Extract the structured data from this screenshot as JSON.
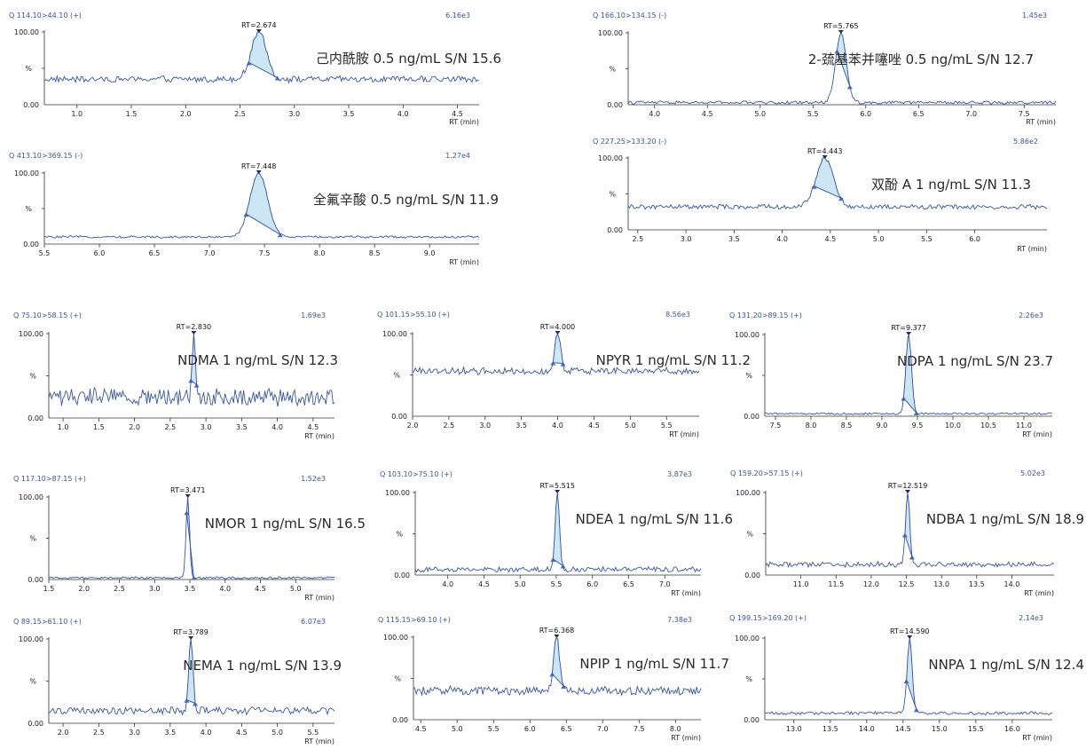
{
  "chart_data": [
    {
      "id": "caprolactam",
      "type": "line",
      "header_left": "Q 114.10>44.10 (+)",
      "header_right": "6.16e3",
      "y_top_label": "100.00",
      "y_mid_label": "%",
      "y_bottom_label": "0.00",
      "xlabel": "RT (min)",
      "xlim": [
        0.7,
        4.7
      ],
      "xticks": [
        1.0,
        1.5,
        2.0,
        2.5,
        3.0,
        3.5,
        4.0,
        4.5
      ],
      "tick_labels": [
        "1.0",
        "1.5",
        "2.0",
        "2.5",
        "3.0",
        "3.5",
        "4.0",
        "4.5"
      ],
      "rt": 2.674,
      "rt_label": "RT=2.674",
      "peak_start": 2.57,
      "peak_end": 2.85,
      "peak_width": 0.07,
      "baseline_level": 35,
      "noise_level": 4,
      "annotation": "己内酰胺  0.5 ng/mL S/N 15.6",
      "show_xlabel": true
    },
    {
      "id": "mercaptobenzothiazole",
      "type": "line",
      "header_left": "Q 166.10>134.15 (-)",
      "header_right": "1.45e3",
      "y_top_label": "100.00",
      "y_mid_label": "%",
      "y_bottom_label": "0.00",
      "xlabel": "RT (min)",
      "xlim": [
        3.75,
        7.8
      ],
      "xticks": [
        4.0,
        4.5,
        5.0,
        5.5,
        6.0,
        6.5,
        7.0,
        7.5
      ],
      "tick_labels": [
        "4.0",
        "4.5",
        "5.0",
        "5.5",
        "6.0",
        "6.5",
        "7.0",
        "7.5"
      ],
      "rt": 5.765,
      "rt_label": "RT=5.765",
      "peak_start": 5.72,
      "peak_end": 5.86,
      "peak_width": 0.05,
      "baseline_level": 3,
      "noise_level": 2,
      "annotation": "2-巯基苯并噻唑  0.5 ng/mL S/N 12.7",
      "show_xlabel": true
    },
    {
      "id": "pfoa",
      "type": "line",
      "header_left": "Q 413.10>369.15 (-)",
      "header_right": "1.27e4",
      "y_top_label": "100.00",
      "y_mid_label": "%",
      "y_bottom_label": "0.00",
      "xlabel": "RT (min)",
      "xlim": [
        5.5,
        9.45
      ],
      "xticks": [
        5.5,
        6.0,
        6.5,
        7.0,
        7.5,
        8.0,
        8.5,
        9.0
      ],
      "tick_labels": [
        "5.5",
        "6.0",
        "6.5",
        "7.0",
        "7.5",
        "8.0",
        "8.5",
        "9.0"
      ],
      "rt": 7.448,
      "rt_label": "RT=7.448",
      "peak_start": 7.33,
      "peak_end": 7.65,
      "peak_width": 0.08,
      "baseline_level": 10,
      "noise_level": 1.5,
      "annotation": "全氟辛酸  0.5 ng/mL S/N 11.9",
      "show_xlabel": true
    },
    {
      "id": "bpa",
      "type": "line",
      "header_left": "Q 227.25>133.20 (-)",
      "header_right": "5.86e2",
      "y_top_label": "100.00",
      "y_mid_label": "%",
      "y_bottom_label": "0.00",
      "xlabel": "RT (min)",
      "xlim": [
        2.4,
        6.75
      ],
      "xticks": [
        2.5,
        3.0,
        3.5,
        4.0,
        4.5,
        5.0,
        5.5,
        6.0
      ],
      "tick_labels": [
        "2.5",
        "3.0",
        "3.5",
        "4.0",
        "4.5",
        "5.0",
        "5.5",
        "6.0"
      ],
      "rt": 4.443,
      "rt_label": "RT=4.443",
      "peak_start": 4.33,
      "peak_end": 4.62,
      "peak_width": 0.09,
      "baseline_level": 32,
      "noise_level": 3,
      "annotation": "双酚 A 1 ng/mL S/N 11.3",
      "show_xlabel": true
    },
    {
      "id": "ndma",
      "type": "line",
      "header_left": "Q 75.10>58.15 (+)",
      "header_right": "1.69e3",
      "y_top_label": "100.00",
      "y_mid_label": "%",
      "y_bottom_label": "0.00",
      "xlabel": "RT (min)",
      "xlim": [
        0.8,
        4.8
      ],
      "xticks": [
        1.0,
        1.5,
        2.0,
        2.5,
        3.0,
        3.5,
        4.0,
        4.5
      ],
      "tick_labels": [
        "1.0",
        "1.5",
        "2.0",
        "2.5",
        "3.0",
        "3.5",
        "4.0",
        "4.5"
      ],
      "rt": 2.83,
      "rt_label": "RT=2.830",
      "peak_start": 2.79,
      "peak_end": 2.88,
      "peak_width": 0.025,
      "baseline_level": 25,
      "noise_level": 10,
      "annotation": "NDMA 1 ng/mL S/N 12.3",
      "show_xlabel": true
    },
    {
      "id": "npyr",
      "type": "line",
      "header_left": "Q 101.15>55.10 (+)",
      "header_right": "8.56e3",
      "y_top_label": "100.00",
      "y_mid_label": "%",
      "y_bottom_label": "0.00",
      "xlabel": "RT (min)",
      "xlim": [
        2.0,
        5.95
      ],
      "xticks": [
        2.0,
        2.5,
        3.0,
        3.5,
        4.0,
        4.5,
        5.0,
        5.5
      ],
      "tick_labels": [
        "2.0",
        "2.5",
        "3.0",
        "3.5",
        "4.0",
        "4.5",
        "5.0",
        "5.5"
      ],
      "rt": 4.0,
      "rt_label": "RT=4.000",
      "peak_start": 3.93,
      "peak_end": 4.08,
      "peak_width": 0.04,
      "baseline_level": 55,
      "noise_level": 4,
      "annotation": "NPYR 1 ng/mL S/N 11.2",
      "show_xlabel": true
    },
    {
      "id": "ndpa",
      "type": "line",
      "header_left": "Q 131.20>89.15 (+)",
      "header_right": "2.26e3",
      "y_top_label": "100.00",
      "y_mid_label": "%",
      "y_bottom_label": "0.00",
      "xlabel": "RT (min)",
      "xlim": [
        7.35,
        11.4
      ],
      "xticks": [
        7.5,
        8.0,
        8.5,
        9.0,
        9.5,
        10.0,
        10.5,
        11.0
      ],
      "tick_labels": [
        "7.5",
        "8.0",
        "8.5",
        "9.0",
        "9.5",
        "10.0",
        "10.5",
        "11.0"
      ],
      "rt": 9.377,
      "rt_label": "RT=9.377",
      "peak_start": 9.3,
      "peak_end": 9.5,
      "peak_width": 0.04,
      "baseline_level": 3,
      "noise_level": 1.2,
      "annotation": "NDPA 1 ng/mL S/N 23.7",
      "show_xlabel": true
    },
    {
      "id": "nmor",
      "type": "line",
      "header_left": "Q 117.10>87.15 (+)",
      "header_right": "1.52e3",
      "y_top_label": "100.00",
      "y_mid_label": "%",
      "y_bottom_label": "0.00",
      "xlabel": "RT (min)",
      "xlim": [
        1.5,
        5.55
      ],
      "xticks": [
        1.5,
        2.0,
        2.5,
        3.0,
        3.5,
        4.0,
        4.5,
        5.0
      ],
      "tick_labels": [
        "1.5",
        "2.0",
        "2.5",
        "3.0",
        "3.5",
        "4.0",
        "4.5",
        "5.0"
      ],
      "rt": 3.471,
      "rt_label": "RT=3.471",
      "peak_start": 3.44,
      "peak_end": 3.56,
      "peak_width": 0.025,
      "baseline_level": 2,
      "noise_level": 1.2,
      "annotation": "NMOR 1 ng/mL S/N 16.5",
      "show_xlabel": true
    },
    {
      "id": "ndea",
      "type": "line",
      "header_left": "Q 103.10>75.10 (+)",
      "header_right": "3.87e3",
      "y_top_label": "100.00",
      "y_mid_label": "%",
      "y_bottom_label": "0.00",
      "xlabel": "RT (min)",
      "xlim": [
        3.55,
        7.5
      ],
      "xticks": [
        4.0,
        4.5,
        5.0,
        5.5,
        6.0,
        6.5,
        7.0
      ],
      "tick_labels": [
        "4.0",
        "4.5",
        "5.0",
        "5.5",
        "6.0",
        "6.5",
        "7.0"
      ],
      "rt": 5.515,
      "rt_label": "RT=5.515",
      "peak_start": 5.45,
      "peak_end": 5.6,
      "peak_width": 0.03,
      "baseline_level": 7,
      "noise_level": 3,
      "annotation": "NDEA 1 ng/mL S/N 11.6",
      "show_xlabel": true
    },
    {
      "id": "ndba",
      "type": "line",
      "header_left": "Q 159.20>57.15 (+)",
      "header_right": "5.02e3",
      "y_top_label": "100.00",
      "y_mid_label": "%",
      "y_bottom_label": "0.00",
      "xlabel": "RT (min)",
      "xlim": [
        10.5,
        14.6
      ],
      "xticks": [
        11.0,
        11.5,
        12.0,
        12.5,
        13.0,
        13.5,
        14.0
      ],
      "tick_labels": [
        "11.0",
        "11.5",
        "12.0",
        "12.5",
        "13.0",
        "13.5",
        "14.0"
      ],
      "rt": 12.519,
      "rt_label": "RT=12.519",
      "peak_start": 12.47,
      "peak_end": 12.6,
      "peak_width": 0.03,
      "baseline_level": 13,
      "noise_level": 3,
      "annotation": "NDBA 1 ng/mL S/N 18.9",
      "show_xlabel": true
    },
    {
      "id": "nema",
      "type": "line",
      "header_left": "Q 89.15>61.10 (+)",
      "header_right": "6.07e3",
      "y_top_label": "100.00",
      "y_mid_label": "%",
      "y_bottom_label": "0.00",
      "xlabel": "RT (min)",
      "xlim": [
        1.8,
        5.8
      ],
      "xticks": [
        2.0,
        2.5,
        3.0,
        3.5,
        4.0,
        4.5,
        5.0,
        5.5
      ],
      "tick_labels": [
        "2.0",
        "2.5",
        "3.0",
        "3.5",
        "4.0",
        "4.5",
        "5.0",
        "5.5"
      ],
      "rt": 3.789,
      "rt_label": "RT=3.789",
      "peak_start": 3.73,
      "peak_end": 3.86,
      "peak_width": 0.03,
      "baseline_level": 15,
      "noise_level": 4,
      "annotation": "NEMA 1 ng/mL S/N 13.9",
      "show_xlabel": true
    },
    {
      "id": "npip",
      "type": "line",
      "header_left": "Q 115.15>69.10 (+)",
      "header_right": "7.38e3",
      "y_top_label": "100.00",
      "y_mid_label": "%",
      "y_bottom_label": "0.00",
      "xlabel": "RT (min)",
      "xlim": [
        4.4,
        8.35
      ],
      "xticks": [
        4.5,
        5.0,
        5.5,
        6.0,
        6.5,
        7.0,
        7.5,
        8.0
      ],
      "tick_labels": [
        "4.5",
        "5.0",
        "5.5",
        "6.0",
        "6.5",
        "7.0",
        "7.5",
        "8.0"
      ],
      "rt": 6.368,
      "rt_label": "RT=6.368",
      "peak_start": 6.3,
      "peak_end": 6.48,
      "peak_width": 0.04,
      "baseline_level": 35,
      "noise_level": 5,
      "annotation": "NPIP 1 ng/mL  S/N 11.7",
      "show_xlabel": true
    },
    {
      "id": "nnpa",
      "type": "line",
      "header_left": "Q 199.15>169.20 (+)",
      "header_right": "2.14e3",
      "y_top_label": "100.00",
      "y_mid_label": "%",
      "y_bottom_label": "0.00",
      "xlabel": "RT (min)",
      "xlim": [
        12.6,
        16.55
      ],
      "xticks": [
        13.0,
        13.5,
        14.0,
        14.5,
        15.0,
        15.5,
        16.0
      ],
      "tick_labels": [
        "13.0",
        "13.5",
        "14.0",
        "14.5",
        "15.0",
        "15.5",
        "16.0"
      ],
      "rt": 14.59,
      "rt_label": "RT=14.590",
      "peak_start": 14.53,
      "peak_end": 14.7,
      "peak_width": 0.035,
      "baseline_level": 8,
      "noise_level": 1.8,
      "annotation": "NNPA 1 ng/mL S/N 12.4",
      "show_xlabel": true
    }
  ],
  "colors": {
    "trace": "#3a56a0",
    "peak_fill": "#cde6f3",
    "header_text": "#3a56a0"
  }
}
